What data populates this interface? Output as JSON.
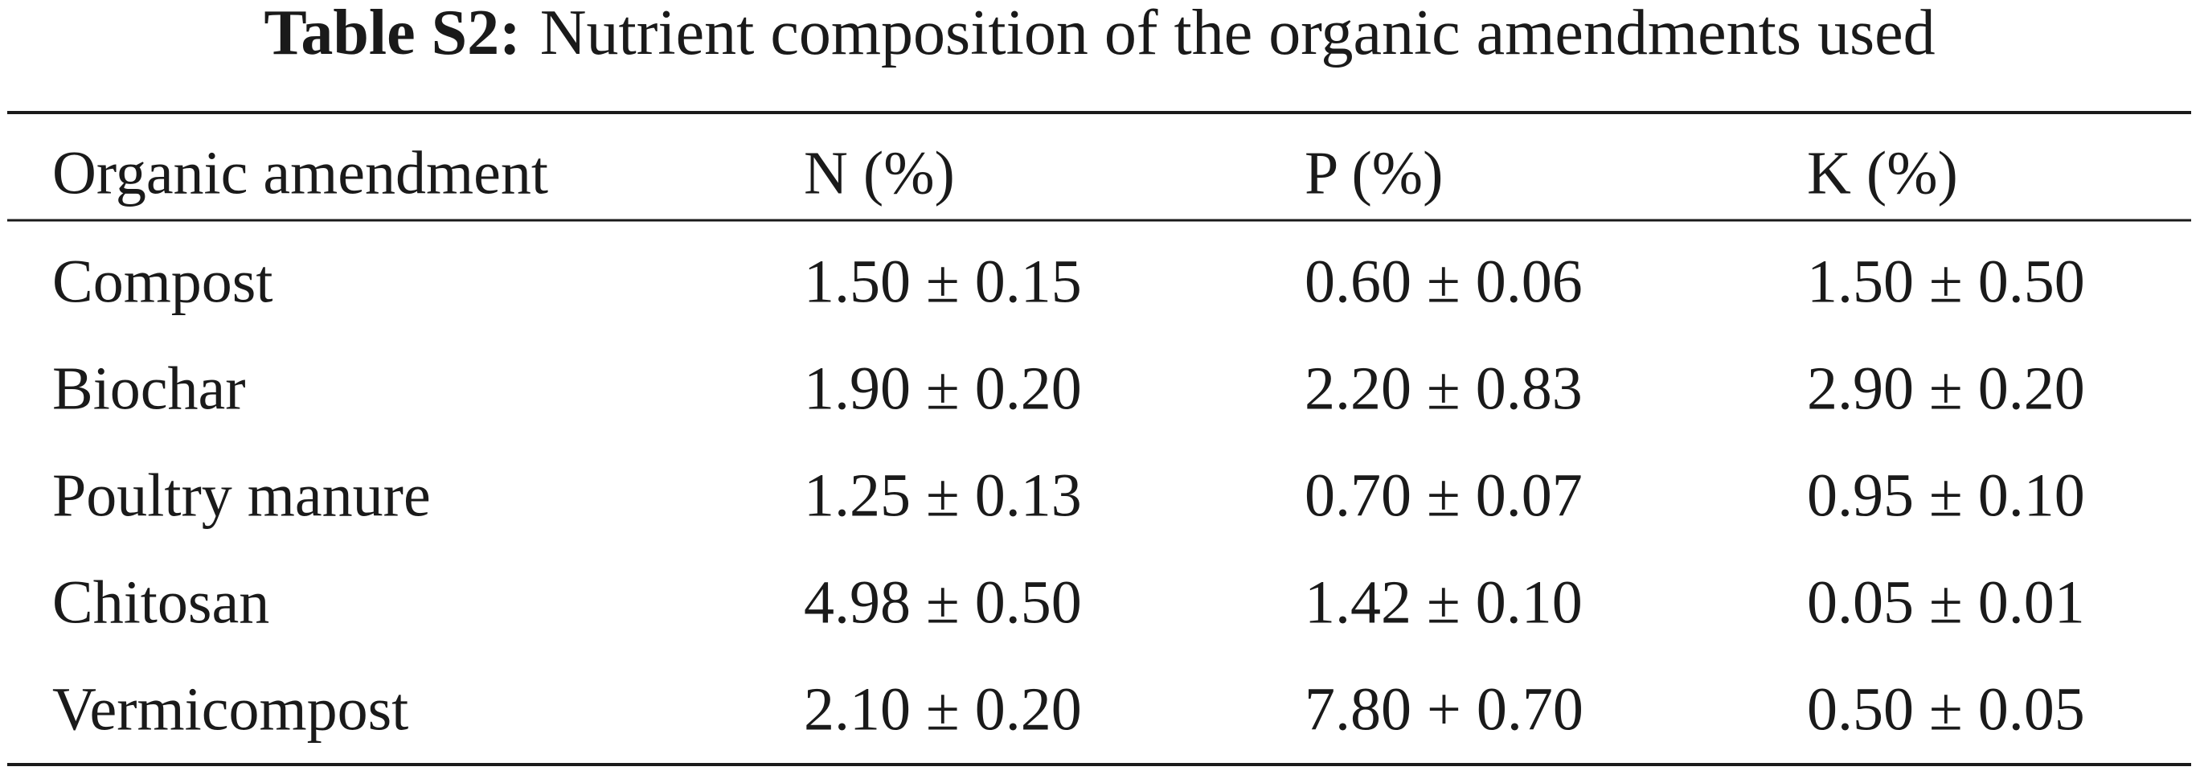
{
  "title": {
    "label": "Table S2:",
    "text": "Nutrient composition of the organic amendments used"
  },
  "table": {
    "header": [
      "Organic amendment",
      "N (%)",
      "P (%)",
      "K (%)"
    ],
    "rows": [
      [
        "Compost",
        "1.50 ± 0.15",
        "0.60 ± 0.06",
        "1.50 ± 0.50"
      ],
      [
        "Biochar",
        "1.90 ± 0.20",
        "2.20 ± 0.83",
        "2.90 ± 0.20"
      ],
      [
        "Poultry manure",
        "1.25 ± 0.13",
        "0.70 ± 0.07",
        "0.95 ± 0.10"
      ],
      [
        "Chitosan",
        "4.98 ± 0.50",
        "1.42 ± 0.10",
        "0.05 ± 0.01"
      ],
      [
        "Vermicompost",
        "2.10 ± 0.20",
        "7.80 + 0.70",
        "0.50 ± 0.05"
      ]
    ]
  }
}
